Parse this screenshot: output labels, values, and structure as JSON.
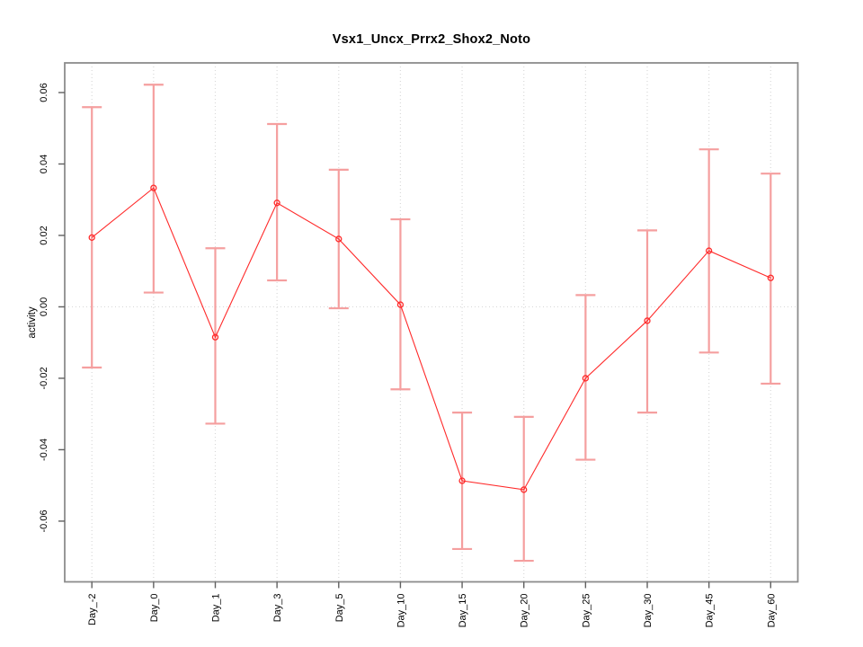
{
  "chart_data": {
    "type": "line",
    "title": "Vsx1_Uncx_Prrx2_Shox2_Noto",
    "xlabel": "",
    "ylabel": "activity",
    "legend": "none",
    "grid": "vertical dotted gridline at each category; dotted horizontal line at y=0",
    "categories": [
      "Day_-2",
      "Day_0",
      "Day_1",
      "Day_3",
      "Day_5",
      "Day_10",
      "Day_15",
      "Day_20",
      "Day_25",
      "Day_30",
      "Day_45",
      "Day_60"
    ],
    "series": [
      {
        "name": "activity",
        "values": [
          0.0194,
          0.0333,
          -0.0085,
          0.0291,
          0.019,
          0.0006,
          -0.0487,
          -0.0512,
          -0.02,
          -0.0039,
          0.0157,
          0.0081
        ],
        "error_low": [
          -0.017,
          0.004,
          -0.0327,
          0.0074,
          -0.0004,
          -0.0231,
          -0.0678,
          -0.0711,
          -0.0428,
          -0.0296,
          -0.0128,
          -0.0215
        ],
        "error_high": [
          0.0559,
          0.0622,
          0.0164,
          0.0512,
          0.0384,
          0.0245,
          -0.0296,
          -0.0308,
          0.0033,
          0.0214,
          0.0441,
          0.0373
        ]
      }
    ],
    "yticks": [
      -0.06,
      -0.04,
      -0.02,
      0.0,
      0.02,
      0.04,
      0.06
    ],
    "ylim": [
      -0.077,
      0.0683
    ],
    "marker": "open-circle",
    "colors": {
      "line": "#ff2a2a",
      "marker": "#ff2a2a",
      "error_bar": "#f59f9f",
      "grid": "#d9d9d9",
      "axis_box": "#8c8c8c",
      "tick": "#606060",
      "text": "#000000",
      "background": "#ffffff"
    }
  }
}
